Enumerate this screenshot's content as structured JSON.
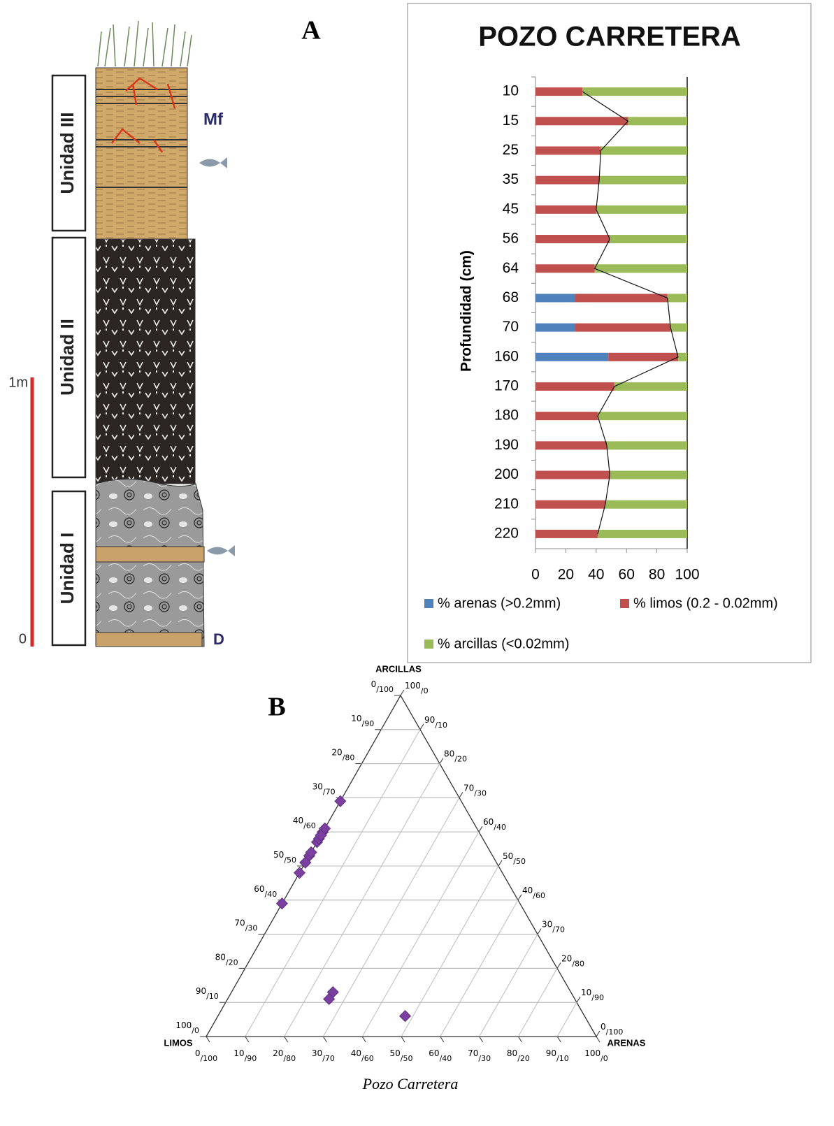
{
  "column": {
    "units": [
      "Unidad III",
      "Unidad II",
      "Unidad I"
    ],
    "marker_top": "Mf",
    "marker_bottom": "D",
    "scale_top": "1m",
    "scale_bottom": "0"
  },
  "chart_data": [
    {
      "type": "stacked-hbar",
      "panel_label": "A",
      "title": "POZO CARRETERA",
      "y_label": "Profundidad (cm)",
      "categories": [
        10,
        15,
        25,
        35,
        45,
        56,
        64,
        68,
        70,
        160,
        170,
        180,
        190,
        200,
        210,
        220
      ],
      "series": [
        {
          "name": "% arenas (>0.2mm)",
          "color": "#4f81bd",
          "values": [
            0,
            0,
            0,
            0,
            0,
            0,
            0,
            26,
            26,
            48,
            0,
            0,
            0,
            0,
            0,
            0
          ]
        },
        {
          "name": "% limos (0.2 - 0.02mm)",
          "color": "#c0504d",
          "values": [
            31,
            61,
            43,
            42,
            40,
            49,
            39,
            61,
            63,
            46,
            52,
            41,
            47,
            49,
            46,
            41
          ]
        },
        {
          "name": "% arcillas (<0.02mm)",
          "color": "#9bbb59",
          "values": [
            69,
            39,
            57,
            58,
            60,
            51,
            61,
            13,
            11,
            6,
            48,
            59,
            53,
            51,
            54,
            59
          ]
        }
      ],
      "xlim": [
        0,
        100
      ],
      "xticks": [
        0,
        20,
        40,
        60,
        80,
        100
      ]
    },
    {
      "type": "ternary",
      "panel_label": "B",
      "caption": "Pozo Carretera",
      "color": "#7b3fa0",
      "top_label": "ARCILLAS",
      "left_label": "LIMOS",
      "right_label": "ARENAS",
      "ticks": {
        "left": [
          {
            "value": 0,
            "label": "0/100"
          },
          {
            "value": 10,
            "label": "10/90"
          },
          {
            "value": 20,
            "label": "20/80"
          },
          {
            "value": 30,
            "label": "30/70"
          },
          {
            "value": 40,
            "label": "40/60"
          },
          {
            "value": 50,
            "label": "50/50"
          },
          {
            "value": 60,
            "label": "60/40"
          },
          {
            "value": 70,
            "label": "70/30"
          },
          {
            "value": 80,
            "label": "80/20"
          },
          {
            "value": 90,
            "label": "90/10"
          },
          {
            "value": 100,
            "label": "100/0"
          }
        ],
        "right": [
          {
            "value": 100,
            "label": "100/0"
          },
          {
            "value": 90,
            "label": "90/10"
          },
          {
            "value": 80,
            "label": "80/20"
          },
          {
            "value": 70,
            "label": "70/30"
          },
          {
            "value": 60,
            "label": "60/40"
          },
          {
            "value": 50,
            "label": "50/50"
          },
          {
            "value": 40,
            "label": "40/60"
          },
          {
            "value": 30,
            "label": "30/70"
          },
          {
            "value": 20,
            "label": "20/80"
          },
          {
            "value": 10,
            "label": "10/90"
          },
          {
            "value": 0,
            "label": "0/100"
          }
        ],
        "bottom": [
          {
            "value": 0,
            "label": "0/100"
          },
          {
            "value": 10,
            "label": "10/90"
          },
          {
            "value": 20,
            "label": "20/80"
          },
          {
            "value": 30,
            "label": "30/70"
          },
          {
            "value": 40,
            "label": "40/60"
          },
          {
            "value": 50,
            "label": "50/50"
          },
          {
            "value": 60,
            "label": "60/40"
          },
          {
            "value": 70,
            "label": "70/30"
          },
          {
            "value": 80,
            "label": "80/20"
          },
          {
            "value": 90,
            "label": "90/10"
          },
          {
            "value": 100,
            "label": "100/0"
          }
        ]
      }
    }
  ]
}
